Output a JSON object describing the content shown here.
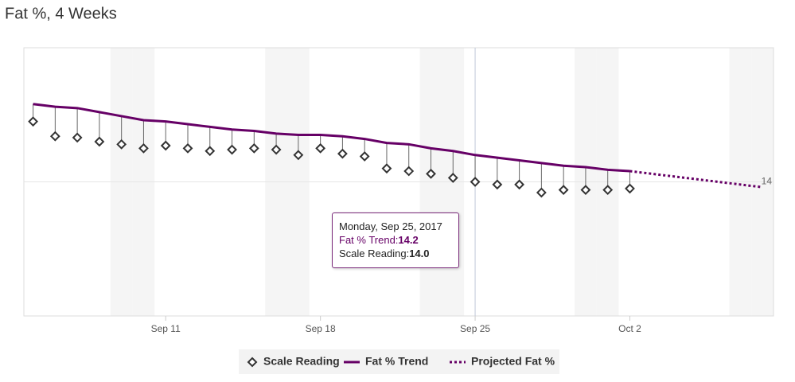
{
  "chart_data": {
    "type": "line",
    "title": "Fat %, 4 Weeks",
    "xlim": [
      "2017-09-04T14:00:00Z",
      "2017-10-08T12:00:00Z"
    ],
    "xticks": [
      {
        "value": "2017-09-11",
        "label": "Sep 11"
      },
      {
        "value": "2017-09-18",
        "label": "Sep 18"
      },
      {
        "value": "2017-09-25",
        "label": "Sep 25"
      },
      {
        "value": "2017-10-02",
        "label": "Oct 2"
      }
    ],
    "ylim": [
      13,
      15
    ],
    "yticks": [
      14
    ],
    "grid": true,
    "legend": "bottom",
    "series": [
      {
        "name": "Scale Reading",
        "color": "#333333",
        "marker": "diamond",
        "x": [
          "2017-09-05",
          "2017-09-06",
          "2017-09-07",
          "2017-09-08",
          "2017-09-09",
          "2017-09-10",
          "2017-09-11",
          "2017-09-12",
          "2017-09-13",
          "2017-09-14",
          "2017-09-15",
          "2017-09-16",
          "2017-09-17",
          "2017-09-18",
          "2017-09-19",
          "2017-09-20",
          "2017-09-21",
          "2017-09-22",
          "2017-09-23",
          "2017-09-24",
          "2017-09-25",
          "2017-09-26",
          "2017-09-27",
          "2017-09-28",
          "2017-09-29",
          "2017-09-30",
          "2017-10-01",
          "2017-10-02"
        ],
        "values": [
          14.45,
          14.34,
          14.33,
          14.3,
          14.28,
          14.25,
          14.27,
          14.25,
          14.23,
          14.24,
          14.25,
          14.24,
          14.2,
          14.25,
          14.21,
          14.19,
          14.1,
          14.08,
          14.06,
          14.03,
          14,
          13.98,
          13.98,
          13.92,
          13.94,
          13.94,
          13.94,
          13.95
        ]
      },
      {
        "name": "Fat % Trend",
        "color": "#660066",
        "dash": "solid",
        "x": [
          "2017-09-05",
          "2017-09-06",
          "2017-09-07",
          "2017-09-08",
          "2017-09-09",
          "2017-09-10",
          "2017-09-11",
          "2017-09-12",
          "2017-09-13",
          "2017-09-14",
          "2017-09-15",
          "2017-09-16",
          "2017-09-17",
          "2017-09-18",
          "2017-09-19",
          "2017-09-20",
          "2017-09-21",
          "2017-09-22",
          "2017-09-23",
          "2017-09-24",
          "2017-09-25",
          "2017-09-26",
          "2017-09-27",
          "2017-09-28",
          "2017-09-29",
          "2017-09-30",
          "2017-10-01",
          "2017-10-02"
        ],
        "values": [
          14.58,
          14.56,
          14.55,
          14.52,
          14.49,
          14.46,
          14.45,
          14.43,
          14.41,
          14.39,
          14.38,
          14.36,
          14.35,
          14.35,
          14.34,
          14.32,
          14.29,
          14.28,
          14.25,
          14.23,
          14.2,
          14.18,
          14.16,
          14.14,
          14.12,
          14.11,
          14.09,
          14.08
        ]
      },
      {
        "name": "Projected Fat %",
        "color": "#660066",
        "dash": "dotted",
        "x": [
          "2017-10-02",
          "2017-10-08"
        ],
        "values": [
          14.08,
          13.96
        ]
      }
    ],
    "tooltip": {
      "date": "Monday, Sep 25, 2017",
      "items": [
        {
          "label": "Fat % Trend:",
          "value": "14.2"
        },
        {
          "label": "Scale Reading:",
          "value": "14.0"
        }
      ]
    }
  }
}
